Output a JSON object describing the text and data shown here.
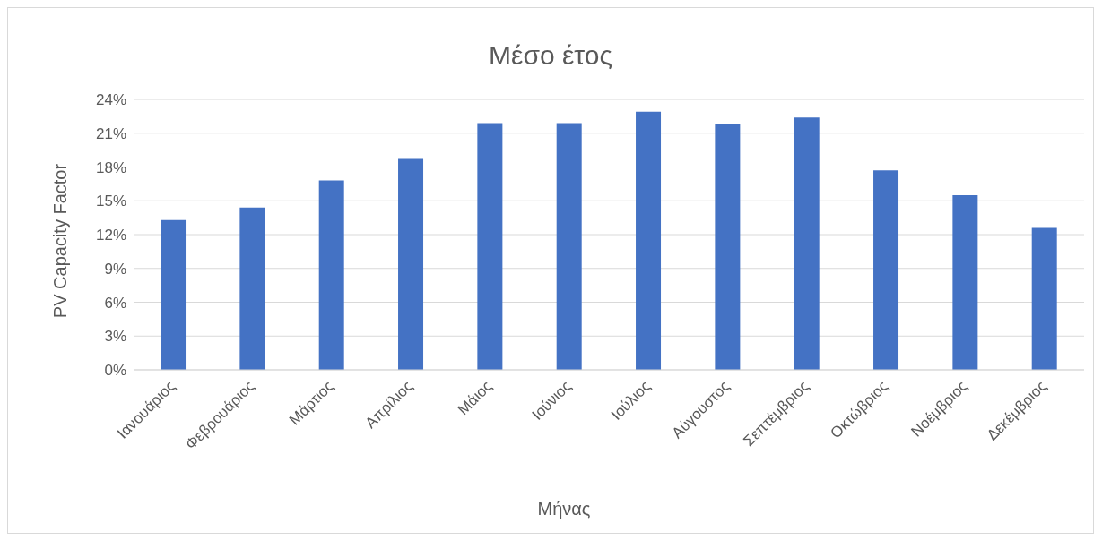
{
  "chart_data": {
    "type": "bar",
    "title": "Μέσο έτος",
    "xlabel": "Μήνας",
    "ylabel": "PV Capacity Factor",
    "categories": [
      "Ιανουάριος",
      "Φεβρουάριος",
      "Μάρτιος",
      "Απρίλιος",
      "Μάιος",
      "Ιούνιος",
      "Ιούλιος",
      "Αύγουστος",
      "Σεπτέμβριος",
      "Οκτώβριος",
      "Νοέμβριος",
      "Δεκέμβριος"
    ],
    "values": [
      13.3,
      14.4,
      16.8,
      18.8,
      21.9,
      21.9,
      22.9,
      21.8,
      22.4,
      17.7,
      15.5,
      12.6
    ],
    "color": "#4472c4",
    "ylim": [
      0,
      24
    ],
    "yticks": [
      {
        "value": 0,
        "label": "0%"
      },
      {
        "value": 3,
        "label": "3%"
      },
      {
        "value": 6,
        "label": "6%"
      },
      {
        "value": 9,
        "label": "9%"
      },
      {
        "value": 12,
        "label": "12%"
      },
      {
        "value": 15,
        "label": "15%"
      },
      {
        "value": 18,
        "label": "18%"
      },
      {
        "value": 21,
        "label": "21%"
      },
      {
        "value": 24,
        "label": "24%"
      }
    ],
    "grid": "y",
    "legend": false
  }
}
